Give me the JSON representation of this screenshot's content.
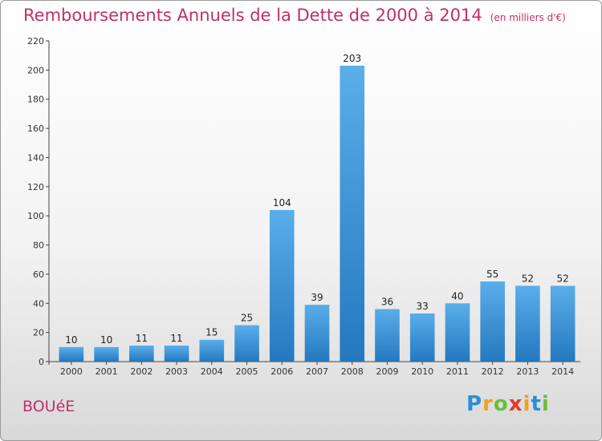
{
  "header": {
    "title": "Remboursements Annuels de la Dette de 2000 à 2014",
    "subtitle": "(en milliers d'€)"
  },
  "footer": {
    "city": "BOUéE",
    "logo_letters": [
      {
        "ch": "P",
        "color": "#2a8fd4"
      },
      {
        "ch": "r",
        "color": "#f0a020"
      },
      {
        "ch": "o",
        "color": "#6abf3a"
      },
      {
        "ch": "x",
        "color": "#e23a2a"
      },
      {
        "ch": "i",
        "color": "#f0a020"
      },
      {
        "ch": "t",
        "color": "#2a8fd4"
      },
      {
        "ch": "i",
        "color": "#6abf3a"
      }
    ]
  },
  "chart_data": {
    "type": "bar",
    "categories": [
      "2000",
      "2001",
      "2002",
      "2003",
      "2004",
      "2005",
      "2006",
      "2007",
      "2008",
      "2009",
      "2010",
      "2011",
      "2012",
      "2013",
      "2014"
    ],
    "values": [
      10,
      10,
      11,
      11,
      15,
      25,
      104,
      39,
      203,
      36,
      33,
      40,
      55,
      52,
      52
    ],
    "ylim": [
      0,
      220
    ],
    "yticks": [
      0,
      20,
      40,
      60,
      80,
      100,
      120,
      140,
      160,
      180,
      200,
      220
    ],
    "grid": false,
    "bar_color": "#3b8fd6"
  }
}
